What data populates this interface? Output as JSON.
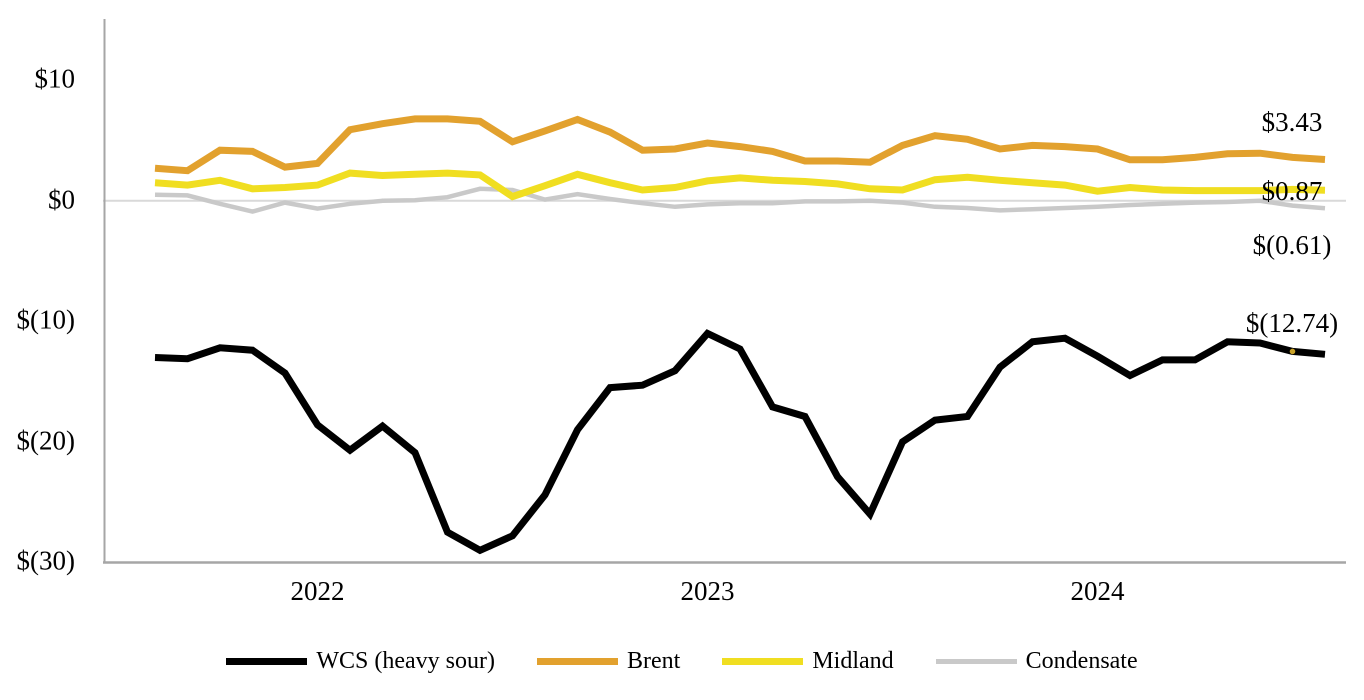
{
  "chart_data": {
    "type": "line",
    "title": "",
    "xlabel": "",
    "ylabel": "",
    "n_points": 37,
    "x_unit": "month",
    "x_tick_labels": [
      {
        "label": "2022",
        "month_index": 5
      },
      {
        "label": "2023",
        "month_index": 17
      },
      {
        "label": "2024",
        "month_index": 29
      }
    ],
    "y_ticks": [
      {
        "label": "$10",
        "value": 10
      },
      {
        "label": "$0",
        "value": 0
      },
      {
        "label": "$(10)",
        "value": -10
      },
      {
        "label": "$(20)",
        "value": -20
      },
      {
        "label": "$(30)",
        "value": -30
      }
    ],
    "ylim": [
      -30,
      15
    ],
    "grid": "zero-line-only",
    "legend_position": "bottom",
    "series": [
      {
        "name": "WCS (heavy sour)",
        "color": "#000000",
        "line_width": 7,
        "end_label": "$(12.74)",
        "values": [
          -13.0,
          -13.1,
          -12.2,
          -12.4,
          -14.3,
          -18.6,
          -20.7,
          -18.7,
          -20.9,
          -27.5,
          -29.0,
          -27.8,
          -24.4,
          -19.0,
          -15.5,
          -15.3,
          -14.1,
          -11.0,
          -12.3,
          -17.1,
          -17.9,
          -22.9,
          -26.0,
          -20.0,
          -18.2,
          -17.9,
          -13.8,
          -11.7,
          -11.4,
          -12.9,
          -14.5,
          -13.2,
          -13.2,
          -11.7,
          -11.8,
          -12.5,
          -12.74
        ]
      },
      {
        "name": "Brent",
        "color": "#E2A12E",
        "line_width": 7,
        "end_label": "$3.43",
        "values": [
          2.7,
          2.5,
          4.2,
          4.1,
          2.8,
          3.1,
          5.9,
          6.4,
          6.8,
          6.8,
          6.6,
          4.9,
          5.8,
          6.75,
          5.7,
          4.2,
          4.3,
          4.8,
          4.5,
          4.1,
          3.3,
          3.3,
          3.2,
          4.6,
          5.4,
          5.1,
          4.3,
          4.6,
          4.5,
          4.3,
          3.4,
          3.4,
          3.6,
          3.9,
          3.95,
          3.6,
          3.43
        ]
      },
      {
        "name": "Midland",
        "color": "#F0DE21",
        "line_width": 7,
        "end_label": "$0.87",
        "values": [
          1.5,
          1.3,
          1.7,
          1.0,
          1.1,
          1.3,
          2.3,
          2.1,
          2.2,
          2.3,
          2.15,
          0.35,
          1.25,
          2.2,
          1.5,
          0.9,
          1.1,
          1.65,
          1.9,
          1.7,
          1.6,
          1.4,
          1.0,
          0.9,
          1.75,
          1.95,
          1.7,
          1.5,
          1.3,
          0.8,
          1.1,
          0.9,
          0.85,
          0.85,
          0.85,
          0.95,
          0.87
        ]
      },
      {
        "name": "Condensate",
        "color": "#C9C9C9",
        "line_width": 4.5,
        "end_label": "$(0.61)",
        "values": [
          0.5,
          0.45,
          -0.25,
          -0.9,
          -0.15,
          -0.65,
          -0.25,
          0.0,
          0.05,
          0.3,
          1.0,
          0.9,
          0.1,
          0.55,
          0.15,
          -0.2,
          -0.5,
          -0.3,
          -0.2,
          -0.2,
          -0.05,
          -0.05,
          0.0,
          -0.15,
          -0.5,
          -0.6,
          -0.8,
          -0.7,
          -0.6,
          -0.5,
          -0.35,
          -0.25,
          -0.15,
          -0.1,
          0.0,
          -0.4,
          -0.61
        ]
      }
    ],
    "stray_marker": {
      "series": "WCS (heavy sour)",
      "point_index": 35,
      "color": "#C9A227"
    }
  },
  "axis_colors": {
    "axis_line": "#A6A6A6",
    "zero_gridline": "#D9D9D9"
  }
}
